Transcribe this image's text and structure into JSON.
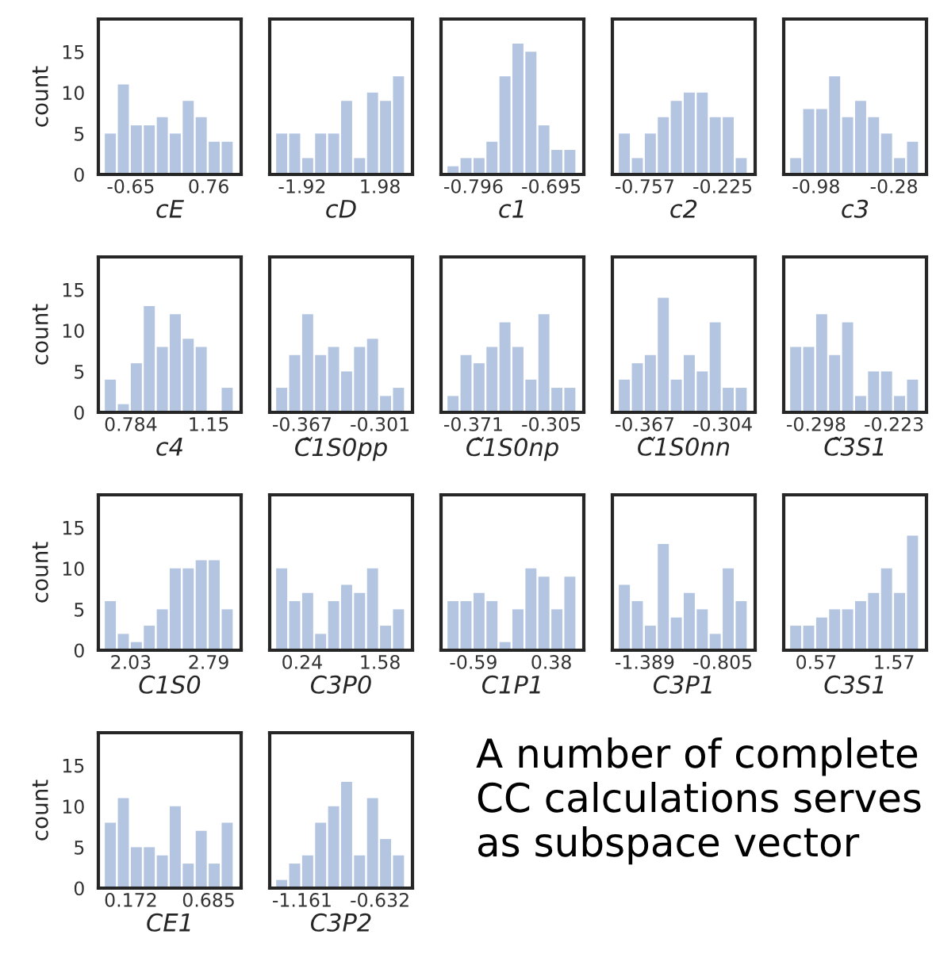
{
  "chart_data": [
    {
      "type": "histogram",
      "xlabel": "cE",
      "ylabel": "count",
      "bins": [
        -1.12,
        -0.885,
        -0.65,
        -0.415,
        -0.18,
        0.055,
        0.29,
        0.525,
        0.76,
        0.995,
        1.23
      ],
      "values": [
        5,
        11,
        6,
        6,
        7,
        5,
        9,
        7,
        4,
        4
      ],
      "color": "#b3c5e0",
      "xlim": [
        -1.2375,
        1.3475
      ],
      "xticks": [
        -0.65,
        0.76
      ],
      "ylim": [
        0,
        19
      ],
      "yticks": [
        0,
        5,
        10,
        15
      ]
    },
    {
      "type": "histogram",
      "xlabel": "cD",
      "bins": [
        -3.22,
        -2.57,
        -1.92,
        -1.27,
        -0.62,
        0.03,
        0.68,
        1.33,
        1.98,
        2.63,
        3.28
      ],
      "values": [
        5,
        5,
        2,
        5,
        5,
        9,
        2,
        10,
        9,
        12
      ],
      "color": "#b3c5e0",
      "xlim": [
        -3.545,
        3.605
      ],
      "xticks": [
        -1.92,
        1.98
      ],
      "ylim": [
        0,
        19
      ],
      "yticks": [
        0,
        5,
        10,
        15
      ],
      "tick_labels": "x"
    },
    {
      "type": "histogram",
      "xlabel": "c1",
      "bins": [
        -0.8297,
        -0.8128,
        -0.796,
        -0.7792,
        -0.7623,
        -0.7455,
        -0.7287,
        -0.7118,
        -0.695,
        -0.6782,
        -0.6613
      ],
      "values": [
        1,
        2,
        2,
        4,
        12,
        16,
        15,
        6,
        3,
        3
      ],
      "color": "#b3c5e0",
      "xlim": [
        -0.8381,
        -0.6529
      ],
      "xticks": [
        -0.796,
        -0.695
      ],
      "ylim": [
        0,
        19
      ],
      "yticks": [
        0,
        5,
        10,
        15
      ],
      "tick_labels": "x"
    },
    {
      "type": "histogram",
      "xlabel": "c2",
      "bins": [
        -0.9343,
        -0.8457,
        -0.757,
        -0.6683,
        -0.5797,
        -0.491,
        -0.4023,
        -0.3137,
        -0.225,
        -0.1363,
        -0.0477
      ],
      "values": [
        5,
        2,
        5,
        7,
        9,
        10,
        10,
        7,
        7,
        2
      ],
      "color": "#b3c5e0",
      "xlim": [
        -0.9786,
        -0.0034
      ],
      "xticks": [
        -0.757,
        -0.225
      ],
      "ylim": [
        0,
        19
      ],
      "yticks": [
        0,
        5,
        10,
        15
      ],
      "tick_labels": "x"
    },
    {
      "type": "histogram",
      "xlabel": "c3",
      "bins": [
        -1.2133,
        -1.0967,
        -0.98,
        -0.8633,
        -0.7467,
        -0.63,
        -0.5133,
        -0.3967,
        -0.28,
        -0.1633,
        -0.0467
      ],
      "values": [
        2,
        8,
        8,
        12,
        7,
        9,
        7,
        5,
        2,
        4
      ],
      "color": "#b3c5e0",
      "xlim": [
        -1.2716,
        0.0116
      ],
      "xticks": [
        -0.98,
        -0.28
      ],
      "ylim": [
        0,
        19
      ],
      "yticks": [
        0,
        5,
        10,
        15
      ],
      "tick_labels": "x"
    },
    {
      "type": "histogram",
      "xlabel": "c4",
      "ylabel": "count",
      "bins": [
        0.662,
        0.723,
        0.784,
        0.845,
        0.906,
        0.967,
        1.028,
        1.089,
        1.15,
        1.211,
        1.272
      ],
      "values": [
        4,
        1,
        6,
        13,
        8,
        12,
        9,
        8,
        0,
        3
      ],
      "color": "#b3c5e0",
      "xlim": [
        0.6315,
        1.3025
      ],
      "xticks": [
        0.784,
        1.15
      ],
      "ylim": [
        0,
        19
      ],
      "yticks": [
        0,
        5,
        10,
        15
      ]
    },
    {
      "type": "histogram",
      "xlabel": "C̃1S0pp",
      "bins": [
        -0.389,
        -0.378,
        -0.367,
        -0.356,
        -0.345,
        -0.334,
        -0.323,
        -0.312,
        -0.301,
        -0.29,
        -0.279
      ],
      "values": [
        3,
        7,
        12,
        7,
        8,
        5,
        8,
        9,
        2,
        3
      ],
      "color": "#b3c5e0",
      "xlim": [
        -0.3945,
        -0.2735
      ],
      "xticks": [
        -0.367,
        -0.301
      ],
      "ylim": [
        0,
        19
      ],
      "yticks": [
        0,
        5,
        10,
        15
      ],
      "tick_labels": "x"
    },
    {
      "type": "histogram",
      "xlabel": "C̃1S0np",
      "bins": [
        -0.393,
        -0.382,
        -0.371,
        -0.36,
        -0.349,
        -0.338,
        -0.327,
        -0.316,
        -0.305,
        -0.294,
        -0.283
      ],
      "values": [
        2,
        7,
        6,
        8,
        11,
        8,
        4,
        12,
        3,
        3
      ],
      "color": "#b3c5e0",
      "xlim": [
        -0.3985,
        -0.2775
      ],
      "xticks": [
        -0.371,
        -0.305
      ],
      "ylim": [
        0,
        19
      ],
      "yticks": [
        0,
        5,
        10,
        15
      ],
      "tick_labels": "x"
    },
    {
      "type": "histogram",
      "xlabel": "C̃1S0nn",
      "bins": [
        -0.388,
        -0.3775,
        -0.367,
        -0.3565,
        -0.346,
        -0.3355,
        -0.325,
        -0.3145,
        -0.304,
        -0.2935,
        -0.283
      ],
      "values": [
        4,
        6,
        7,
        14,
        4,
        7,
        5,
        11,
        3,
        3
      ],
      "color": "#b3c5e0",
      "xlim": [
        -0.39325,
        -0.27775
      ],
      "xticks": [
        -0.367,
        -0.304
      ],
      "ylim": [
        0,
        19
      ],
      "yticks": [
        0,
        5,
        10,
        15
      ],
      "tick_labels": "x"
    },
    {
      "type": "histogram",
      "xlabel": "C̃3S1",
      "bins": [
        -0.323,
        -0.3105,
        -0.298,
        -0.2855,
        -0.273,
        -0.2605,
        -0.248,
        -0.2355,
        -0.223,
        -0.2105,
        -0.198
      ],
      "values": [
        8,
        8,
        12,
        7,
        11,
        2,
        5,
        5,
        2,
        4
      ],
      "color": "#b3c5e0",
      "xlim": [
        -0.32925,
        -0.19175
      ],
      "xticks": [
        -0.298,
        -0.223
      ],
      "ylim": [
        0,
        19
      ],
      "yticks": [
        0,
        5,
        10,
        15
      ],
      "tick_labels": "x"
    },
    {
      "type": "histogram",
      "xlabel": "C1S0",
      "ylabel": "count",
      "bins": [
        1.7767,
        1.9033,
        2.03,
        2.1567,
        2.2833,
        2.41,
        2.5367,
        2.6633,
        2.79,
        2.9167,
        3.0433
      ],
      "values": [
        6,
        2,
        1,
        3,
        5,
        10,
        10,
        11,
        11,
        5
      ],
      "color": "#b3c5e0",
      "xlim": [
        1.7134,
        3.1066
      ],
      "xticks": [
        2.03,
        2.79
      ],
      "ylim": [
        0,
        19
      ],
      "yticks": [
        0,
        5,
        10,
        15
      ]
    },
    {
      "type": "histogram",
      "xlabel": "C3P0",
      "bins": [
        -0.2067,
        0.0167,
        0.24,
        0.4633,
        0.6867,
        0.91,
        1.1333,
        1.3567,
        1.58,
        1.8033,
        2.0267
      ],
      "values": [
        10,
        6,
        7,
        2,
        6,
        8,
        7,
        10,
        3,
        5
      ],
      "color": "#b3c5e0",
      "xlim": [
        -0.3184,
        2.1384
      ],
      "xticks": [
        0.24,
        1.58
      ],
      "ylim": [
        0,
        19
      ],
      "yticks": [
        0,
        5,
        10,
        15
      ],
      "tick_labels": "x"
    },
    {
      "type": "histogram",
      "xlabel": "C1P1",
      "bins": [
        -0.9133,
        -0.7517,
        -0.59,
        -0.4283,
        -0.2667,
        -0.105,
        0.0567,
        0.2183,
        0.38,
        0.5417,
        0.7033
      ],
      "values": [
        6,
        6,
        7,
        6,
        1,
        5,
        10,
        9,
        5,
        9
      ],
      "color": "#b3c5e0",
      "xlim": [
        -0.9941,
        0.7841
      ],
      "xticks": [
        -0.59,
        0.38
      ],
      "ylim": [
        0,
        19
      ],
      "yticks": [
        0,
        5,
        10,
        15
      ],
      "tick_labels": "x"
    },
    {
      "type": "histogram",
      "xlabel": "C3P1",
      "bins": [
        -1.5837,
        -1.4863,
        -1.389,
        -1.2917,
        -1.1943,
        -1.097,
        -0.9997,
        -0.9023,
        -0.805,
        -0.7077,
        -0.6103
      ],
      "values": [
        8,
        6,
        3,
        13,
        4,
        7,
        5,
        2,
        10,
        6
      ],
      "color": "#b3c5e0",
      "xlim": [
        -1.6324,
        -0.5616
      ],
      "xticks": [
        -1.389,
        -0.805
      ],
      "ylim": [
        0,
        19
      ],
      "yticks": [
        0,
        5,
        10,
        15
      ],
      "tick_labels": "x"
    },
    {
      "type": "histogram",
      "xlabel": "C3S1",
      "bins": [
        0.2367,
        0.4033,
        0.57,
        0.7367,
        0.9033,
        1.07,
        1.2367,
        1.4033,
        1.57,
        1.7367,
        1.9033
      ],
      "values": [
        3,
        3,
        4,
        5,
        5,
        6,
        7,
        10,
        7,
        14
      ],
      "color": "#b3c5e0",
      "xlim": [
        0.1534,
        1.9866
      ],
      "xticks": [
        0.57,
        1.57
      ],
      "ylim": [
        0,
        19
      ],
      "yticks": [
        0,
        5,
        10,
        15
      ],
      "tick_labels": "x"
    },
    {
      "type": "histogram",
      "xlabel": "CE1",
      "ylabel": "count",
      "bins": [
        0.001,
        0.0865,
        0.172,
        0.2575,
        0.343,
        0.4285,
        0.514,
        0.5995,
        0.685,
        0.7705,
        0.856
      ],
      "values": [
        8,
        11,
        5,
        5,
        4,
        10,
        3,
        7,
        3,
        8
      ],
      "color": "#b3c5e0",
      "xlim": [
        -0.0418,
        0.8988
      ],
      "xticks": [
        0.172,
        0.685
      ],
      "ylim": [
        0,
        19
      ],
      "yticks": [
        0,
        5,
        10,
        15
      ]
    },
    {
      "type": "histogram",
      "xlabel": "C3P2",
      "bins": [
        -1.3373,
        -1.2492,
        -1.161,
        -1.0728,
        -0.9847,
        -0.8965,
        -0.8083,
        -0.7202,
        -0.632,
        -0.5438,
        -0.4557
      ],
      "values": [
        1,
        3,
        4,
        8,
        10,
        13,
        4,
        11,
        6,
        4
      ],
      "color": "#b3c5e0",
      "xlim": [
        -1.3814,
        -0.4116
      ],
      "xticks": [
        -1.161,
        -0.632
      ],
      "ylim": [
        0,
        19
      ],
      "yticks": [
        0,
        5,
        10,
        15
      ],
      "tick_labels": "x"
    },
    {
      "type": "other",
      "annotations": [
        "A number of complete CC calculations serves as subspace vector"
      ]
    }
  ]
}
